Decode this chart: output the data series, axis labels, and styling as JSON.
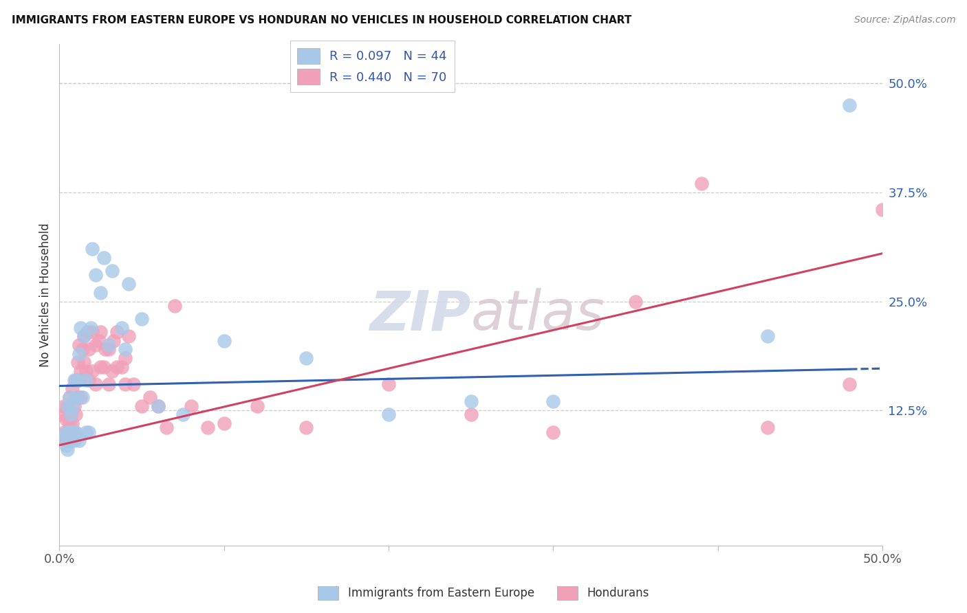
{
  "title": "IMMIGRANTS FROM EASTERN EUROPE VS HONDURAN NO VEHICLES IN HOUSEHOLD CORRELATION CHART",
  "source": "Source: ZipAtlas.com",
  "ylabel": "No Vehicles in Household",
  "ytick_labels": [
    "12.5%",
    "25.0%",
    "37.5%",
    "50.0%"
  ],
  "ytick_values": [
    0.125,
    0.25,
    0.375,
    0.5
  ],
  "xlim": [
    0.0,
    0.5
  ],
  "ylim": [
    -0.03,
    0.545
  ],
  "legend_label1": "R = 0.097   N = 44",
  "legend_label2": "R = 0.440   N = 70",
  "color_blue": "#a8c8e8",
  "color_pink": "#f0a0b8",
  "color_blue_line": "#3060b0",
  "color_pink_line": "#d04060",
  "watermark_zip": "ZIP",
  "watermark_atlas": "atlas",
  "blue_scatter_x": [
    0.003,
    0.004,
    0.004,
    0.005,
    0.005,
    0.006,
    0.006,
    0.007,
    0.007,
    0.008,
    0.008,
    0.009,
    0.009,
    0.01,
    0.01,
    0.011,
    0.012,
    0.012,
    0.013,
    0.014,
    0.015,
    0.016,
    0.016,
    0.018,
    0.019,
    0.02,
    0.022,
    0.025,
    0.027,
    0.03,
    0.032,
    0.038,
    0.04,
    0.042,
    0.05,
    0.06,
    0.075,
    0.1,
    0.15,
    0.2,
    0.25,
    0.3,
    0.43,
    0.48
  ],
  "blue_scatter_y": [
    0.095,
    0.085,
    0.1,
    0.08,
    0.13,
    0.09,
    0.14,
    0.1,
    0.12,
    0.1,
    0.13,
    0.09,
    0.16,
    0.1,
    0.14,
    0.16,
    0.09,
    0.19,
    0.22,
    0.14,
    0.21,
    0.1,
    0.16,
    0.1,
    0.22,
    0.31,
    0.28,
    0.26,
    0.3,
    0.2,
    0.285,
    0.22,
    0.195,
    0.27,
    0.23,
    0.13,
    0.12,
    0.205,
    0.185,
    0.12,
    0.135,
    0.135,
    0.21,
    0.475
  ],
  "pink_scatter_x": [
    0.002,
    0.002,
    0.003,
    0.003,
    0.004,
    0.004,
    0.005,
    0.005,
    0.005,
    0.006,
    0.006,
    0.007,
    0.007,
    0.008,
    0.008,
    0.009,
    0.009,
    0.01,
    0.01,
    0.011,
    0.011,
    0.012,
    0.012,
    0.013,
    0.013,
    0.014,
    0.015,
    0.015,
    0.016,
    0.017,
    0.018,
    0.018,
    0.02,
    0.02,
    0.022,
    0.022,
    0.024,
    0.025,
    0.025,
    0.027,
    0.028,
    0.03,
    0.03,
    0.032,
    0.033,
    0.035,
    0.035,
    0.038,
    0.04,
    0.04,
    0.042,
    0.045,
    0.05,
    0.055,
    0.06,
    0.065,
    0.07,
    0.08,
    0.09,
    0.1,
    0.12,
    0.15,
    0.2,
    0.25,
    0.3,
    0.35,
    0.39,
    0.43,
    0.48,
    0.5
  ],
  "pink_scatter_y": [
    0.095,
    0.12,
    0.1,
    0.13,
    0.09,
    0.115,
    0.1,
    0.13,
    0.09,
    0.11,
    0.14,
    0.09,
    0.12,
    0.11,
    0.15,
    0.13,
    0.1,
    0.12,
    0.16,
    0.14,
    0.18,
    0.16,
    0.2,
    0.14,
    0.17,
    0.195,
    0.18,
    0.21,
    0.17,
    0.215,
    0.195,
    0.16,
    0.215,
    0.17,
    0.2,
    0.155,
    0.205,
    0.175,
    0.215,
    0.175,
    0.195,
    0.195,
    0.155,
    0.17,
    0.205,
    0.175,
    0.215,
    0.175,
    0.185,
    0.155,
    0.21,
    0.155,
    0.13,
    0.14,
    0.13,
    0.105,
    0.245,
    0.13,
    0.105,
    0.11,
    0.13,
    0.105,
    0.155,
    0.12,
    0.1,
    0.25,
    0.385,
    0.105,
    0.155,
    0.355
  ],
  "blue_R": 0.097,
  "pink_R": 0.44,
  "blue_N": 44,
  "pink_N": 70,
  "blue_line_intercept": 0.153,
  "blue_line_slope": 0.04,
  "pink_line_intercept": 0.085,
  "pink_line_slope": 0.44
}
